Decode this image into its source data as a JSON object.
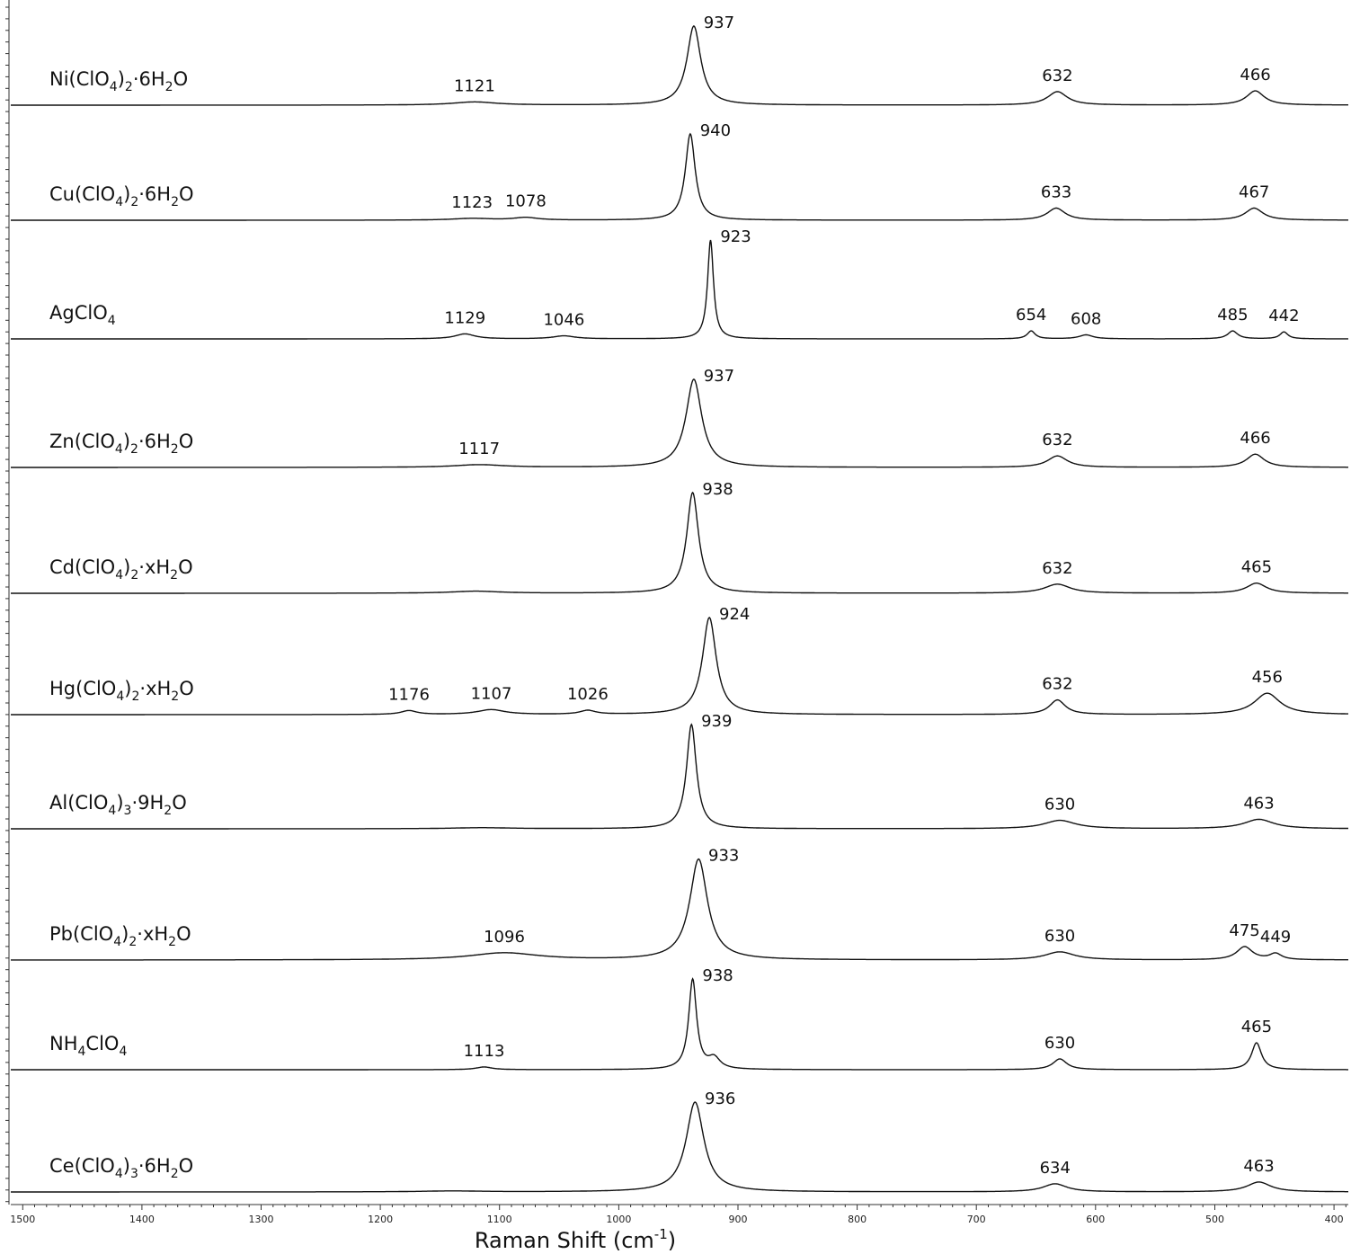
{
  "chart_data": {
    "type": "line",
    "xlabel": "Raman Shift (cm-1)",
    "xlabel_parts": {
      "main": "Raman Shift (cm",
      "sup": "-1",
      "close": ")"
    },
    "xlim": [
      1510,
      388
    ],
    "x_reversed": true,
    "x_ticks": [
      1500,
      1400,
      1300,
      1200,
      1100,
      1000,
      900,
      800,
      700,
      600,
      500,
      400
    ],
    "x_tick_labels": [
      "1500",
      "1400",
      "1300",
      "1200",
      "1100",
      "1000",
      "900",
      "800",
      "700",
      "600",
      "500",
      "400"
    ],
    "series": [
      {
        "name": "Ni(ClO4)2·6H2O",
        "name_parts": [
          [
            "Ni(ClO",
            false
          ],
          [
            "4",
            true
          ],
          [
            ")",
            false
          ],
          [
            "2",
            true
          ],
          [
            "·6H",
            false
          ],
          [
            "2",
            true
          ],
          [
            "O",
            false
          ]
        ],
        "peaks": [
          {
            "x": 1121,
            "label": "1121",
            "h": 0.04,
            "w": 22
          },
          {
            "x": 937,
            "label": "937",
            "h": 1.0,
            "w": 7
          },
          {
            "x": 632,
            "label": "632",
            "h": 0.17,
            "w": 10
          },
          {
            "x": 466,
            "label": "466",
            "h": 0.18,
            "w": 9
          }
        ]
      },
      {
        "name": "Cu(ClO4)2·6H2O",
        "name_parts": [
          [
            "Cu(ClO",
            false
          ],
          [
            "4",
            true
          ],
          [
            ")",
            false
          ],
          [
            "2",
            true
          ],
          [
            "·6H",
            false
          ],
          [
            "2",
            true
          ],
          [
            "O",
            false
          ]
        ],
        "peaks": [
          {
            "x": 1123,
            "label": "1123",
            "h": 0.02,
            "w": 20
          },
          {
            "x": 1078,
            "label": "1078",
            "h": 0.03,
            "w": 12
          },
          {
            "x": 940,
            "label": "940",
            "h": 1.0,
            "w": 5
          },
          {
            "x": 633,
            "label": "633",
            "h": 0.14,
            "w": 9
          },
          {
            "x": 467,
            "label": "467",
            "h": 0.14,
            "w": 9
          }
        ]
      },
      {
        "name": "AgClO4",
        "name_parts": [
          [
            "AgClO",
            false
          ],
          [
            "4",
            true
          ]
        ],
        "peaks": [
          {
            "x": 1129,
            "label": "1129",
            "h": 0.05,
            "w": 10
          },
          {
            "x": 1046,
            "label": "1046",
            "h": 0.03,
            "w": 11
          },
          {
            "x": 923,
            "label": "923",
            "h": 1.0,
            "w": 3
          },
          {
            "x": 654,
            "label": "654",
            "h": 0.08,
            "w": 4
          },
          {
            "x": 608,
            "label": "608",
            "h": 0.04,
            "w": 7
          },
          {
            "x": 485,
            "label": "485",
            "h": 0.08,
            "w": 5
          },
          {
            "x": 442,
            "label": "442",
            "h": 0.07,
            "w": 4
          }
        ]
      },
      {
        "name": "Zn(ClO4)2·6H2O",
        "name_parts": [
          [
            "Zn(ClO",
            false
          ],
          [
            "4",
            true
          ],
          [
            ")",
            false
          ],
          [
            "2",
            true
          ],
          [
            "·6H",
            false
          ],
          [
            "2",
            true
          ],
          [
            "O",
            false
          ]
        ],
        "peaks": [
          {
            "x": 1117,
            "label": "1117",
            "h": 0.03,
            "w": 25
          },
          {
            "x": 937,
            "label": "937",
            "h": 1.0,
            "w": 8
          },
          {
            "x": 632,
            "label": "632",
            "h": 0.13,
            "w": 10
          },
          {
            "x": 466,
            "label": "466",
            "h": 0.15,
            "w": 9
          }
        ]
      },
      {
        "name": "Cd(ClO4)2·xH2O",
        "name_parts": [
          [
            "Cd(ClO",
            false
          ],
          [
            "4",
            true
          ],
          [
            ")",
            false
          ],
          [
            "2",
            true
          ],
          [
            "·xH",
            false
          ],
          [
            "2",
            true
          ],
          [
            "O",
            false
          ]
        ],
        "peaks": [
          {
            "x": 1120,
            "label": "",
            "h": 0.02,
            "w": 25
          },
          {
            "x": 938,
            "label": "938",
            "h": 1.0,
            "w": 6
          },
          {
            "x": 632,
            "label": "632",
            "h": 0.09,
            "w": 13
          },
          {
            "x": 465,
            "label": "465",
            "h": 0.1,
            "w": 10
          }
        ]
      },
      {
        "name": "Hg(ClO4)2·xH2O",
        "name_parts": [
          [
            "Hg(ClO",
            false
          ],
          [
            "4",
            true
          ],
          [
            ")",
            false
          ],
          [
            "2",
            true
          ],
          [
            "·xH",
            false
          ],
          [
            "2",
            true
          ],
          [
            "O",
            false
          ]
        ],
        "peaks": [
          {
            "x": 1176,
            "label": "1176",
            "h": 0.04,
            "w": 8
          },
          {
            "x": 1107,
            "label": "1107",
            "h": 0.05,
            "w": 14
          },
          {
            "x": 1026,
            "label": "1026",
            "h": 0.04,
            "w": 8
          },
          {
            "x": 924,
            "label": "924",
            "h": 1.0,
            "w": 7
          },
          {
            "x": 632,
            "label": "632",
            "h": 0.15,
            "w": 8
          },
          {
            "x": 456,
            "label": "456",
            "h": 0.22,
            "w": 13
          }
        ]
      },
      {
        "name": "Al(ClO4)3·9H2O",
        "name_parts": [
          [
            "Al(ClO",
            false
          ],
          [
            "4",
            true
          ],
          [
            ")",
            false
          ],
          [
            "3",
            true
          ],
          [
            "·9H",
            false
          ],
          [
            "2",
            true
          ],
          [
            "O",
            false
          ]
        ],
        "peaks": [
          {
            "x": 1115,
            "label": "",
            "h": 0.01,
            "w": 30
          },
          {
            "x": 939,
            "label": "939",
            "h": 1.0,
            "w": 5
          },
          {
            "x": 630,
            "label": "630",
            "h": 0.08,
            "w": 16
          },
          {
            "x": 463,
            "label": "463",
            "h": 0.09,
            "w": 15
          }
        ]
      },
      {
        "name": "Pb(ClO4)2·xH2O",
        "name_parts": [
          [
            "Pb(ClO",
            false
          ],
          [
            "4",
            true
          ],
          [
            ")",
            false
          ],
          [
            "2",
            true
          ],
          [
            "·xH",
            false
          ],
          [
            "2",
            true
          ],
          [
            "O",
            false
          ]
        ],
        "peaks": [
          {
            "x": 1096,
            "label": "1096",
            "h": 0.07,
            "w": 35
          },
          {
            "x": 933,
            "label": "933",
            "h": 1.0,
            "w": 9
          },
          {
            "x": 630,
            "label": "630",
            "h": 0.08,
            "w": 15
          },
          {
            "x": 475,
            "label": "475",
            "h": 0.13,
            "w": 8
          },
          {
            "x": 449,
            "label": "449",
            "h": 0.06,
            "w": 6
          }
        ]
      },
      {
        "name": "NH4ClO4",
        "name_parts": [
          [
            "NH",
            false
          ],
          [
            "4",
            true
          ],
          [
            "ClO",
            false
          ],
          [
            "4",
            true
          ]
        ],
        "peaks": [
          {
            "x": 1113,
            "label": "1113",
            "h": 0.03,
            "w": 8
          },
          {
            "x": 938,
            "label": "938",
            "h": 1.0,
            "w": 4
          },
          {
            "x": 920,
            "label": "",
            "h": 0.12,
            "w": 6
          },
          {
            "x": 630,
            "label": "630",
            "h": 0.12,
            "w": 7
          },
          {
            "x": 465,
            "label": "465",
            "h": 0.3,
            "w": 5
          }
        ]
      },
      {
        "name": "Ce(ClO4)3·6H2O",
        "name_parts": [
          [
            "Ce(ClO",
            false
          ],
          [
            "4",
            true
          ],
          [
            ")",
            false
          ],
          [
            "3",
            true
          ],
          [
            "·6H",
            false
          ],
          [
            "2",
            true
          ],
          [
            "O",
            false
          ]
        ],
        "peaks": [
          {
            "x": 1140,
            "label": "",
            "h": 0.01,
            "w": 30
          },
          {
            "x": 936,
            "label": "936",
            "h": 1.0,
            "w": 9
          },
          {
            "x": 634,
            "label": "634",
            "h": 0.09,
            "w": 12
          },
          {
            "x": 463,
            "label": "463",
            "h": 0.11,
            "w": 12
          }
        ]
      }
    ]
  }
}
